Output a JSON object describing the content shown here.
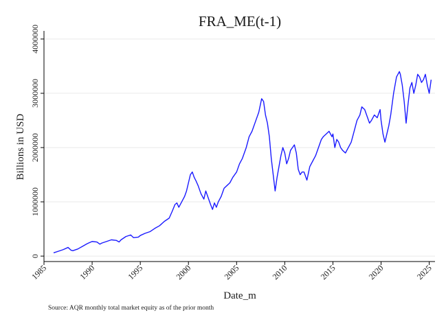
{
  "chart_data": {
    "type": "line",
    "title": "FRA_ME(t-1)",
    "xlabel": "Date_m",
    "ylabel": "Billions in USD",
    "note": "Source: AQR monthly total market equity as of the prior month",
    "xlim": [
      1985,
      2025.6
    ],
    "ylim": [
      -100000,
      4150000
    ],
    "xticks": [
      1985,
      1990,
      1995,
      2000,
      2005,
      2010,
      2015,
      2020,
      2025
    ],
    "yticks": [
      0,
      1000000,
      2000000,
      3000000,
      4000000
    ],
    "grid": true,
    "legend": "none",
    "line_color": "#1a1aff",
    "series": [
      {
        "x": [
          1986.0,
          1986.5,
          1987.0,
          1987.5,
          1987.8,
          1988.0,
          1988.5,
          1989.0,
          1989.5,
          1990.0,
          1990.5,
          1990.8,
          1991.0,
          1991.5,
          1992.0,
          1992.5,
          1992.8,
          1993.0,
          1993.5,
          1994.0,
          1994.3,
          1994.8,
          1995.0,
          1995.5,
          1996.0,
          1996.5,
          1997.0,
          1997.5,
          1998.0,
          1998.3,
          1998.6,
          1998.8,
          1999.0,
          1999.3,
          1999.6,
          1999.8,
          2000.0,
          2000.2,
          2000.4,
          2000.6,
          2000.8,
          2001.0,
          2001.3,
          2001.6,
          2001.8,
          2002.0,
          2002.3,
          2002.5,
          2002.7,
          2002.9,
          2003.1,
          2003.4,
          2003.7,
          2004.0,
          2004.3,
          2004.6,
          2005.0,
          2005.3,
          2005.6,
          2006.0,
          2006.3,
          2006.6,
          2007.0,
          2007.3,
          2007.6,
          2007.8,
          2008.0,
          2008.2,
          2008.4,
          2008.6,
          2008.8,
          2009.0,
          2009.2,
          2009.4,
          2009.6,
          2009.8,
          2010.0,
          2010.2,
          2010.4,
          2010.6,
          2010.8,
          2011.0,
          2011.2,
          2011.4,
          2011.6,
          2011.8,
          2012.0,
          2012.3,
          2012.6,
          2012.9,
          2013.2,
          2013.5,
          2013.8,
          2014.0,
          2014.3,
          2014.6,
          2014.9,
          2015.0,
          2015.2,
          2015.4,
          2015.6,
          2015.8,
          2016.0,
          2016.3,
          2016.6,
          2016.9,
          2017.2,
          2017.5,
          2017.8,
          2018.0,
          2018.3,
          2018.6,
          2018.8,
          2019.0,
          2019.3,
          2019.6,
          2019.9,
          2020.0,
          2020.2,
          2020.4,
          2020.6,
          2020.8,
          2021.0,
          2021.3,
          2021.6,
          2021.9,
          2022.0,
          2022.2,
          2022.4,
          2022.6,
          2022.8,
          2023.0,
          2023.2,
          2023.4,
          2023.6,
          2023.8,
          2024.0,
          2024.2,
          2024.4,
          2024.6,
          2024.8,
          2025.0,
          2025.2
        ],
        "values": [
          60000,
          90000,
          120000,
          160000,
          110000,
          100000,
          130000,
          180000,
          230000,
          270000,
          260000,
          220000,
          240000,
          270000,
          300000,
          290000,
          260000,
          300000,
          360000,
          390000,
          340000,
          350000,
          380000,
          420000,
          450000,
          510000,
          560000,
          640000,
          700000,
          820000,
          950000,
          980000,
          900000,
          1000000,
          1100000,
          1200000,
          1350000,
          1500000,
          1550000,
          1450000,
          1380000,
          1300000,
          1150000,
          1050000,
          1200000,
          1100000,
          950000,
          860000,
          980000,
          900000,
          1000000,
          1100000,
          1250000,
          1300000,
          1350000,
          1450000,
          1550000,
          1700000,
          1800000,
          2000000,
          2200000,
          2300000,
          2500000,
          2650000,
          2900000,
          2850000,
          2600000,
          2450000,
          2200000,
          1800000,
          1500000,
          1200000,
          1450000,
          1650000,
          1850000,
          2000000,
          1900000,
          1700000,
          1800000,
          1950000,
          2000000,
          2050000,
          1900000,
          1600000,
          1500000,
          1550000,
          1550000,
          1400000,
          1650000,
          1750000,
          1850000,
          2000000,
          2150000,
          2200000,
          2250000,
          2300000,
          2200000,
          2250000,
          2000000,
          2150000,
          2100000,
          2000000,
          1950000,
          1900000,
          2000000,
          2100000,
          2300000,
          2500000,
          2600000,
          2750000,
          2700000,
          2550000,
          2450000,
          2500000,
          2600000,
          2550000,
          2700000,
          2500000,
          2250000,
          2100000,
          2250000,
          2400000,
          2600000,
          3000000,
          3300000,
          3400000,
          3350000,
          3150000,
          2850000,
          2450000,
          2800000,
          3100000,
          3200000,
          3000000,
          3150000,
          3350000,
          3300000,
          3200000,
          3250000,
          3350000,
          3150000,
          3000000,
          3250000
        ]
      }
    ]
  }
}
